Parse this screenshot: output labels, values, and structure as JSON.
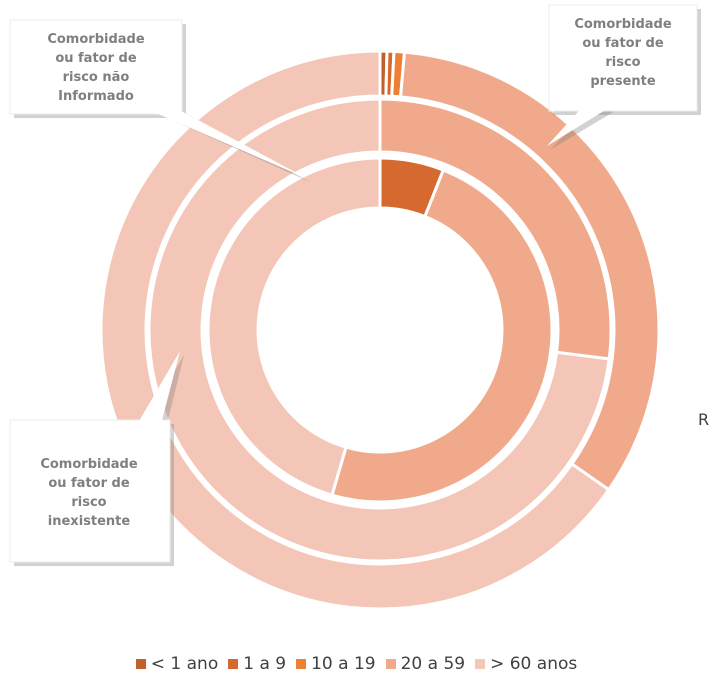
{
  "chart_data": {
    "type": "donut",
    "categories": [
      "< 1 ano",
      "1 a 9",
      "10 a 19",
      "20 a 59",
      "> 60 anos"
    ],
    "colors": [
      "#c0622c",
      "#d6692f",
      "#ee8035",
      "#f0a98b",
      "#f4c6b7"
    ],
    "series": [
      {
        "name": "Comorbidade ou fator de risco não Informado",
        "values": [
          0,
          6,
          0,
          48.5,
          45.5
        ]
      },
      {
        "name": "Comorbidade ou fator de risco inexistente",
        "values": [
          0,
          0,
          0,
          27,
          73
        ]
      },
      {
        "name": "Comorbidade ou fator de risco presente",
        "values": [
          0.4,
          0.4,
          0.6,
          33.3,
          65.3
        ]
      }
    ],
    "annotations": [
      "R"
    ]
  }
}
